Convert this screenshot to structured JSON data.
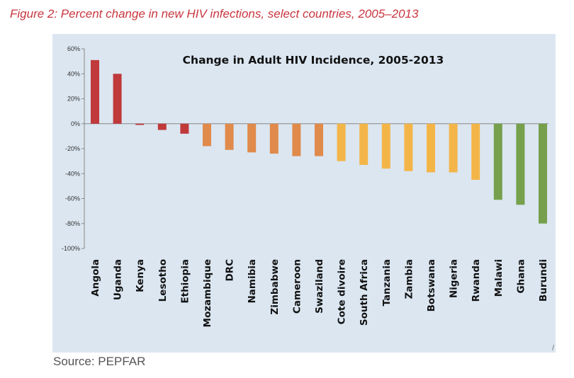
{
  "figure": {
    "caption": "Figure 2: Percent change in new HIV infections, select countries, 2005–2013",
    "source": "Source: PEPFAR",
    "caption_color": "#c8363f",
    "plot_background": "#dbe6f1"
  },
  "chart_data": {
    "type": "bar",
    "title": "Change in Adult HIV Incidence, 2005-2013",
    "xlabel": "",
    "ylabel": "",
    "ylim": [
      -100,
      60
    ],
    "yticks": [
      60,
      40,
      20,
      0,
      -20,
      -40,
      -60,
      -80,
      -100
    ],
    "ytick_labels": [
      "60%",
      "40%",
      "20%",
      "0%",
      "-20%",
      "-40%",
      "-60%",
      "-80%",
      "-100%"
    ],
    "grid": false,
    "legend": "none",
    "categories": [
      "Angola",
      "Uganda",
      "Kenya",
      "Lesotho",
      "Ethiopia",
      "Mozambique",
      "DRC",
      "Namibia",
      "Zimbabwe",
      "Cameroon",
      "Swaziland",
      "Cote divoire",
      "South Africa",
      "Tanzania",
      "Zambia",
      "Botswana",
      "Nigeria",
      "Rwanda",
      "Malawi",
      "Ghana",
      "Burundi"
    ],
    "values": [
      51,
      40,
      -1,
      -5,
      -8,
      -18,
      -21,
      -23,
      -24,
      -26,
      -26,
      -30,
      -33,
      -36,
      -38,
      -39,
      -39,
      -45,
      -61,
      -65,
      -80
    ],
    "colors": [
      "#c0393b",
      "#c0393b",
      "#c0393b",
      "#c0393b",
      "#c0393b",
      "#e08a4b",
      "#e08a4b",
      "#e08a4b",
      "#e08a4b",
      "#e08a4b",
      "#e08a4b",
      "#f4b548",
      "#f4b548",
      "#f4b548",
      "#f4b548",
      "#f4b548",
      "#f4b548",
      "#f4b548",
      "#76a04c",
      "#76a04c",
      "#76a04c"
    ]
  }
}
